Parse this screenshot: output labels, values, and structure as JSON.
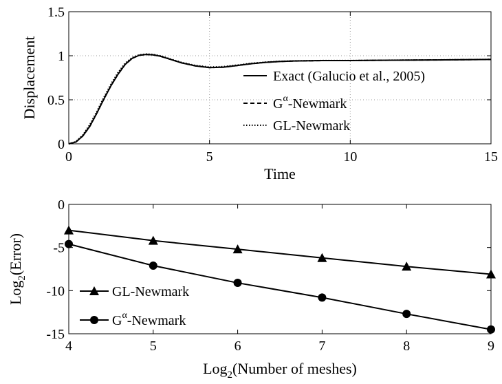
{
  "chart_data": [
    {
      "type": "line",
      "xlabel": "Time",
      "ylabel": "Displacement",
      "xlim": [
        0,
        15
      ],
      "ylim": [
        0,
        1.5
      ],
      "xticks": [
        0,
        5,
        10,
        15
      ],
      "xtick_labels": [
        "0",
        "5",
        "10",
        "15"
      ],
      "yticks": [
        0,
        0.5,
        1,
        1.5
      ],
      "ytick_labels": [
        "0",
        "0.5",
        "1",
        "1.5"
      ],
      "grid": "dotted",
      "legend_position": "bottom-right",
      "series": [
        {
          "name": "Exact (Galucio et al., 2005)",
          "style": "solid",
          "x": [
            0,
            0.25,
            0.5,
            0.75,
            1.0,
            1.25,
            1.5,
            1.75,
            2.0,
            2.25,
            2.5,
            2.75,
            3.0,
            3.25,
            3.5,
            3.75,
            4.0,
            4.5,
            5.0,
            5.5,
            6.0,
            6.5,
            7.0,
            7.5,
            8.0,
            9.0,
            10.0,
            11.0,
            12.0,
            13.0,
            14.0,
            15.0
          ],
          "y": [
            0,
            0.02,
            0.09,
            0.2,
            0.35,
            0.51,
            0.66,
            0.79,
            0.9,
            0.97,
            1.005,
            1.015,
            1.01,
            0.995,
            0.97,
            0.945,
            0.92,
            0.885,
            0.865,
            0.87,
            0.89,
            0.91,
            0.925,
            0.935,
            0.94,
            0.945,
            0.945,
            0.948,
            0.95,
            0.952,
            0.955,
            0.958
          ]
        },
        {
          "name": "G^α-Newmark",
          "style": "dashed",
          "x": [
            0,
            0.25,
            0.5,
            0.75,
            1.0,
            1.25,
            1.5,
            1.75,
            2.0,
            2.25,
            2.5,
            2.75,
            3.0,
            3.25,
            3.5,
            3.75,
            4.0,
            4.5,
            5.0,
            5.5,
            6.0,
            6.5,
            7.0,
            7.5,
            8.0,
            9.0,
            10.0,
            11.0,
            12.0,
            13.0,
            14.0,
            15.0
          ],
          "y": [
            0,
            0.02,
            0.09,
            0.2,
            0.35,
            0.51,
            0.66,
            0.79,
            0.9,
            0.97,
            1.005,
            1.015,
            1.01,
            0.995,
            0.97,
            0.945,
            0.92,
            0.885,
            0.865,
            0.87,
            0.89,
            0.91,
            0.925,
            0.935,
            0.94,
            0.945,
            0.945,
            0.948,
            0.95,
            0.952,
            0.955,
            0.958
          ]
        },
        {
          "name": "GL-Newmark",
          "style": "dotted",
          "x": [
            0,
            0.25,
            0.5,
            0.75,
            1.0,
            1.25,
            1.5,
            1.75,
            2.0,
            2.25,
            2.5,
            2.75,
            3.0,
            3.25,
            3.5,
            3.75,
            4.0,
            4.5,
            5.0,
            5.5,
            6.0,
            6.5,
            7.0,
            7.5,
            8.0,
            9.0,
            10.0,
            11.0,
            12.0,
            13.0,
            14.0,
            15.0
          ],
          "y": [
            0,
            0.025,
            0.1,
            0.22,
            0.37,
            0.53,
            0.68,
            0.81,
            0.915,
            0.98,
            1.01,
            1.02,
            1.015,
            1.0,
            0.975,
            0.95,
            0.925,
            0.89,
            0.872,
            0.877,
            0.895,
            0.915,
            0.928,
            0.937,
            0.942,
            0.946,
            0.946,
            0.949,
            0.951,
            0.953,
            0.956,
            0.959
          ]
        }
      ]
    },
    {
      "type": "line",
      "xlabel": "Log",
      "xlabel_sub": "2",
      "xlabel_rest": "(Number of meshes)",
      "ylabel": "Log",
      "ylabel_sub": "2",
      "ylabel_rest": "(Error)",
      "xlim": [
        4,
        9
      ],
      "ylim": [
        -15,
        0
      ],
      "xticks": [
        4,
        5,
        6,
        7,
        8,
        9
      ],
      "xtick_labels": [
        "4",
        "5",
        "6",
        "7",
        "8",
        "9"
      ],
      "yticks": [
        -15,
        -10,
        -5,
        0
      ],
      "ytick_labels": [
        "-15",
        "-10",
        "-5",
        "0"
      ],
      "grid": "none",
      "legend_position": "bottom-left",
      "series": [
        {
          "name": "GL-Newmark",
          "marker": "triangle",
          "x": [
            4,
            5,
            6,
            7,
            8,
            9
          ],
          "y": [
            -3.0,
            -4.2,
            -5.2,
            -6.2,
            -7.2,
            -8.1
          ]
        },
        {
          "name": "G^α-Newmark",
          "marker": "circle",
          "x": [
            4,
            5,
            6,
            7,
            8,
            9
          ],
          "y": [
            -4.6,
            -7.1,
            -9.1,
            -10.8,
            -12.7,
            -14.5
          ]
        }
      ]
    }
  ],
  "legend_top": {
    "exact": "Exact (Galucio et al., 2005)",
    "galpha_main": "G",
    "galpha_sup": "α",
    "galpha_rest": "-Newmark",
    "gl": "GL-Newmark"
  },
  "legend_bottom": {
    "gl": "GL-Newmark",
    "galpha_main": "G",
    "galpha_sup": "α",
    "galpha_rest": "-Newmark"
  }
}
